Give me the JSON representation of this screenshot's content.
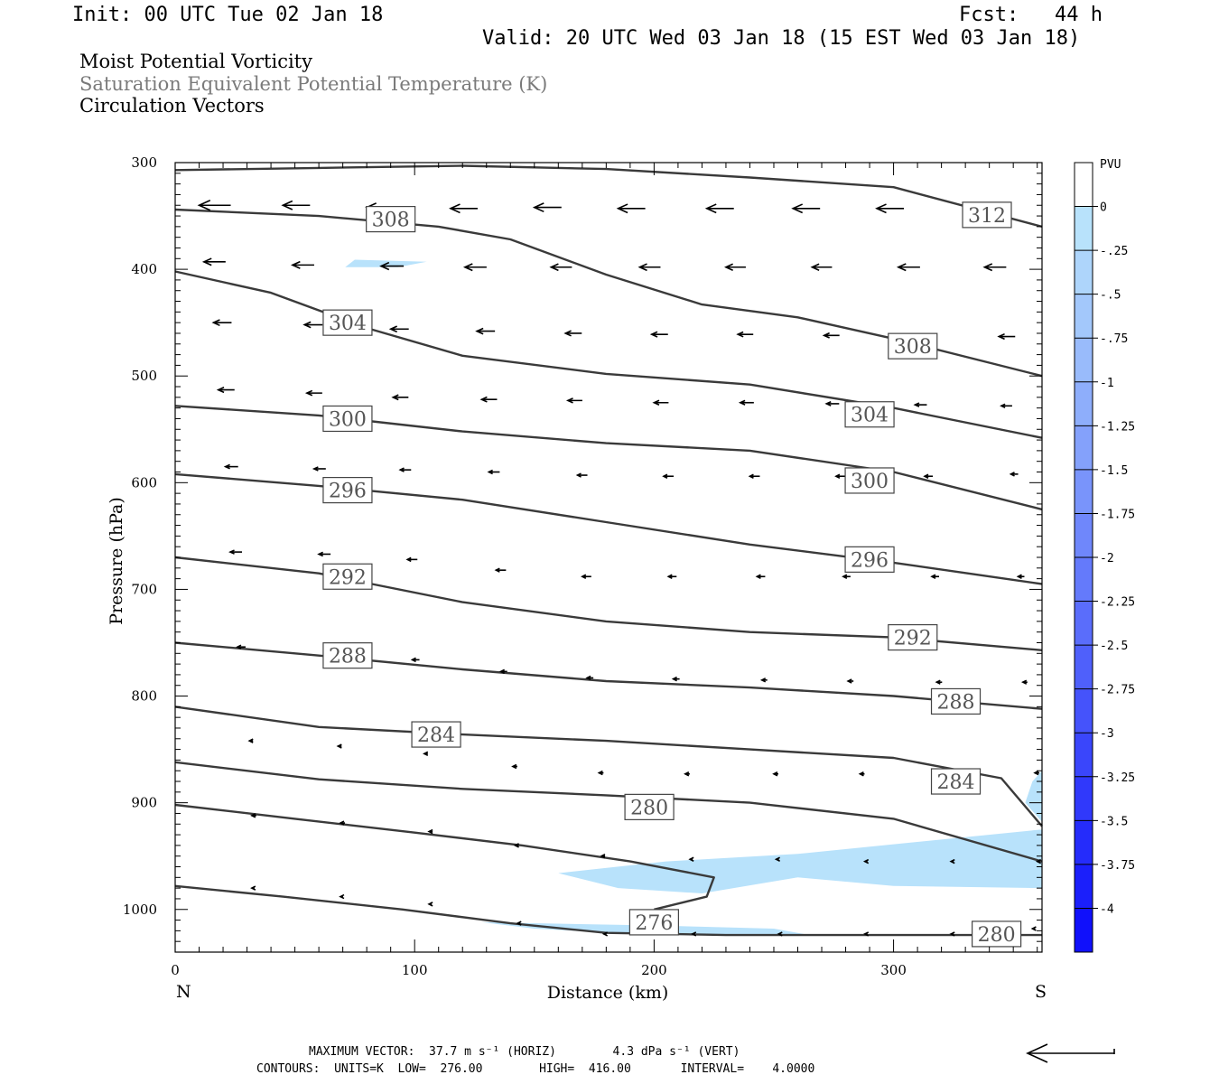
{
  "header": {
    "init": "Init: 00 UTC Tue 02 Jan 18",
    "fcst": "Fcst:   44 h",
    "valid": "Valid: 20 UTC Wed 03 Jan 18 (15 EST Wed 03 Jan 18)"
  },
  "fields": [
    "Moist Potential Vorticity",
    "Saturation Equivalent Potential Temperature (K)",
    "Circulation Vectors"
  ],
  "footer": {
    "max_vector": "MAXIMUM VECTOR:  37.7 m s⁻¹ (HORIZ)        4.3 dPa s⁻¹ (VERT)",
    "contours": "CONTOURS:  UNITS=K  LOW=  276.00        HIGH=  416.00       INTERVAL=    4.0000"
  },
  "colors": {
    "contour": "#3a3a3a",
    "pv_fill": "#b8e2fb",
    "field2_text": "#7a7a7a"
  },
  "chart_data": {
    "type": "cross-section",
    "xlabel": "Distance (km)",
    "ylabel": "Pressure (hPa)",
    "xlim": [
      0,
      362
    ],
    "ylim": [
      1040,
      300
    ],
    "x_ticks": [
      0,
      100,
      200,
      300
    ],
    "y_ticks": [
      300,
      400,
      500,
      600,
      700,
      800,
      900,
      1000
    ],
    "x_end_labels": {
      "left": "N",
      "right": "S"
    },
    "colorbar": {
      "unit": "PVU",
      "levels": [
        "0",
        "-.25",
        "-.5",
        "-.75",
        "-1",
        "-1.25",
        "-1.5",
        "-1.75",
        "-2",
        "-2.25",
        "-2.5",
        "-2.75",
        "-3",
        "-3.25",
        "-3.5",
        "-3.75",
        "-4"
      ],
      "colors": [
        "#ffffff",
        "#b8e2fb",
        "#aed5fb",
        "#a3c8fb",
        "#99bbfb",
        "#8eaefb",
        "#84a1fb",
        "#7994fb",
        "#6f87fb",
        "#647afb",
        "#5a6dfb",
        "#4f60fb",
        "#4553fb",
        "#3a46fb",
        "#3039fb",
        "#252cfb",
        "#1b1ffb",
        "#1010fb"
      ]
    },
    "contours": [
      {
        "label": "276",
        "points": [
          [
            0,
            978
          ],
          [
            45,
            988
          ],
          [
            95,
            1000
          ],
          [
            140,
            1013
          ],
          [
            180,
            1022
          ],
          [
            230,
            1024
          ],
          [
            290,
            1024
          ],
          [
            362,
            1024
          ]
        ],
        "labels_at": [
          [
            200,
            1012
          ]
        ]
      },
      {
        "label": "280",
        "points": [
          [
            0,
            902
          ],
          [
            50,
            915
          ],
          [
            100,
            928
          ],
          [
            145,
            940
          ],
          [
            190,
            955
          ],
          [
            225,
            970
          ],
          [
            222,
            988
          ],
          [
            200,
            1000
          ]
        ],
        "labels_at": [
          [
            198,
            904
          ]
        ]
      },
      {
        "label": "280",
        "points": [
          [
            0,
            862
          ],
          [
            60,
            878
          ],
          [
            120,
            887
          ],
          [
            180,
            893
          ],
          [
            240,
            900
          ],
          [
            300,
            915
          ],
          [
            362,
            955
          ]
        ],
        "labels_at": [
          [
            343,
            1023
          ]
        ]
      },
      {
        "label": "284",
        "points": [
          [
            0,
            810
          ],
          [
            60,
            829
          ],
          [
            120,
            836
          ],
          [
            180,
            842
          ],
          [
            240,
            850
          ],
          [
            300,
            858
          ],
          [
            345,
            877
          ],
          [
            362,
            922
          ]
        ],
        "labels_at": [
          [
            109,
            836
          ],
          [
            326,
            880
          ]
        ]
      },
      {
        "label": "288",
        "points": [
          [
            0,
            750
          ],
          [
            60,
            762
          ],
          [
            120,
            775
          ],
          [
            180,
            786
          ],
          [
            240,
            792
          ],
          [
            300,
            800
          ],
          [
            362,
            812
          ]
        ],
        "labels_at": [
          [
            72,
            762
          ],
          [
            326,
            805
          ]
        ]
      },
      {
        "label": "292",
        "points": [
          [
            0,
            670
          ],
          [
            60,
            685
          ],
          [
            120,
            712
          ],
          [
            180,
            730
          ],
          [
            240,
            740
          ],
          [
            300,
            745
          ],
          [
            362,
            757
          ]
        ],
        "labels_at": [
          [
            72,
            688
          ],
          [
            308,
            745
          ]
        ]
      },
      {
        "label": "296",
        "points": [
          [
            0,
            592
          ],
          [
            60,
            603
          ],
          [
            120,
            616
          ],
          [
            180,
            637
          ],
          [
            240,
            658
          ],
          [
            300,
            675
          ],
          [
            362,
            695
          ]
        ],
        "labels_at": [
          [
            72,
            607
          ],
          [
            290,
            672
          ]
        ]
      },
      {
        "label": "300",
        "points": [
          [
            0,
            528
          ],
          [
            60,
            537
          ],
          [
            120,
            552
          ],
          [
            180,
            563
          ],
          [
            240,
            570
          ],
          [
            300,
            590
          ],
          [
            362,
            625
          ]
        ],
        "labels_at": [
          [
            72,
            540
          ],
          [
            290,
            598
          ]
        ]
      },
      {
        "label": "304",
        "points": [
          [
            0,
            402
          ],
          [
            40,
            422
          ],
          [
            80,
            455
          ],
          [
            120,
            481
          ],
          [
            180,
            498
          ],
          [
            240,
            508
          ],
          [
            300,
            530
          ],
          [
            362,
            558
          ]
        ],
        "labels_at": [
          [
            72,
            450
          ],
          [
            290,
            536
          ]
        ]
      },
      {
        "label": "308",
        "points": [
          [
            0,
            344
          ],
          [
            60,
            350
          ],
          [
            110,
            360
          ],
          [
            140,
            372
          ],
          [
            180,
            405
          ],
          [
            220,
            433
          ],
          [
            260,
            445
          ],
          [
            300,
            465
          ],
          [
            362,
            500
          ]
        ],
        "labels_at": [
          [
            90,
            353
          ],
          [
            308,
            472
          ]
        ]
      },
      {
        "label": "312",
        "points": [
          [
            0,
            307
          ],
          [
            60,
            305
          ],
          [
            120,
            303
          ],
          [
            180,
            306
          ],
          [
            240,
            314
          ],
          [
            300,
            323
          ],
          [
            362,
            360
          ]
        ],
        "labels_at": [
          [
            339,
            349
          ]
        ]
      }
    ],
    "pv_regions": [
      {
        "level": "-.25",
        "points": [
          [
            71,
            398
          ],
          [
            75,
            391
          ],
          [
            105,
            393
          ],
          [
            93,
            398
          ]
        ]
      },
      {
        "level": "-.25",
        "points": [
          [
            160,
            966
          ],
          [
            205,
            955
          ],
          [
            260,
            948
          ],
          [
            362,
            925
          ],
          [
            362,
            980
          ],
          [
            300,
            978
          ],
          [
            260,
            970
          ],
          [
            220,
            985
          ],
          [
            185,
            980
          ]
        ]
      },
      {
        "level": "-.25",
        "points": [
          [
            358,
            880
          ],
          [
            362,
            870
          ],
          [
            362,
            918
          ],
          [
            355,
            900
          ]
        ]
      },
      {
        "level": "-.25",
        "points": [
          [
            128,
            1012
          ],
          [
            200,
            1015
          ],
          [
            250,
            1018
          ],
          [
            265,
            1024
          ],
          [
            200,
            1024
          ],
          [
            150,
            1018
          ]
        ]
      }
    ],
    "vectors": [
      [
        10,
        340,
        35
      ],
      [
        45,
        340,
        30
      ],
      [
        80,
        342,
        30
      ],
      [
        115,
        343,
        30
      ],
      [
        150,
        342,
        30
      ],
      [
        185,
        343,
        30
      ],
      [
        222,
        343,
        30
      ],
      [
        258,
        343,
        30
      ],
      [
        293,
        343,
        30
      ],
      [
        330,
        343,
        30
      ],
      [
        12,
        393,
        24
      ],
      [
        49,
        396,
        24
      ],
      [
        86,
        397,
        25
      ],
      [
        121,
        398,
        24
      ],
      [
        157,
        398,
        23
      ],
      [
        194,
        398,
        23
      ],
      [
        230,
        398,
        22
      ],
      [
        266,
        398,
        22
      ],
      [
        302,
        398,
        24
      ],
      [
        338,
        398,
        24
      ],
      [
        16,
        450,
        20
      ],
      [
        54,
        452,
        20
      ],
      [
        90,
        456,
        20
      ],
      [
        126,
        458,
        20
      ],
      [
        163,
        460,
        18
      ],
      [
        199,
        461,
        18
      ],
      [
        235,
        461,
        17
      ],
      [
        271,
        462,
        17
      ],
      [
        308,
        463,
        16
      ],
      [
        344,
        463,
        18
      ],
      [
        18,
        513,
        18
      ],
      [
        55,
        516,
        17
      ],
      [
        91,
        520,
        17
      ],
      [
        128,
        522,
        17
      ],
      [
        164,
        523,
        16
      ],
      [
        200,
        525,
        16
      ],
      [
        236,
        525,
        15
      ],
      [
        272,
        526,
        14
      ],
      [
        309,
        527,
        13
      ],
      [
        345,
        528,
        12
      ],
      [
        21,
        585,
        14
      ],
      [
        58,
        587,
        13
      ],
      [
        94,
        588,
        12
      ],
      [
        131,
        590,
        12
      ],
      [
        168,
        593,
        11
      ],
      [
        204,
        594,
        11
      ],
      [
        240,
        594,
        11
      ],
      [
        276,
        594,
        10
      ],
      [
        313,
        594,
        9
      ],
      [
        349,
        592,
        8
      ],
      [
        23,
        665,
        13
      ],
      [
        60,
        667,
        13
      ],
      [
        97,
        672,
        11
      ],
      [
        134,
        682,
        11
      ],
      [
        170,
        688,
        10
      ],
      [
        206,
        688,
        9
      ],
      [
        243,
        688,
        9
      ],
      [
        279,
        688,
        8
      ],
      [
        316,
        688,
        8
      ],
      [
        352,
        688,
        7
      ],
      [
        26,
        754,
        9
      ],
      [
        63,
        760,
        8
      ],
      [
        99,
        766,
        8
      ],
      [
        136,
        777,
        7
      ],
      [
        172,
        783,
        7
      ],
      [
        208,
        784,
        7
      ],
      [
        245,
        785,
        6
      ],
      [
        281,
        786,
        6
      ],
      [
        318,
        787,
        6
      ],
      [
        354,
        787,
        5
      ],
      [
        31,
        842,
        4
      ],
      [
        68,
        847,
        4
      ],
      [
        104,
        854,
        4
      ],
      [
        141,
        866,
        5
      ],
      [
        177,
        872,
        5
      ],
      [
        213,
        873,
        5
      ],
      [
        250,
        873,
        5
      ],
      [
        286,
        873,
        5
      ],
      [
        323,
        873,
        5
      ],
      [
        359,
        872,
        5
      ],
      [
        32,
        912,
        5
      ],
      [
        69,
        919,
        5
      ],
      [
        106,
        927,
        4
      ],
      [
        142,
        940,
        4
      ],
      [
        178,
        950,
        4
      ],
      [
        215,
        953,
        3
      ],
      [
        251,
        953,
        3
      ],
      [
        288,
        955,
        3
      ],
      [
        324,
        955,
        3
      ],
      [
        360,
        955,
        3
      ],
      [
        32,
        980,
        3
      ],
      [
        69,
        988,
        3
      ],
      [
        106,
        995,
        3
      ],
      [
        143,
        1013,
        3
      ],
      [
        179,
        1023,
        3
      ],
      [
        216,
        1023,
        3
      ],
      [
        252,
        1023,
        3
      ],
      [
        288,
        1023,
        3
      ],
      [
        324,
        1023,
        3
      ],
      [
        358,
        1018,
        3
      ]
    ]
  }
}
